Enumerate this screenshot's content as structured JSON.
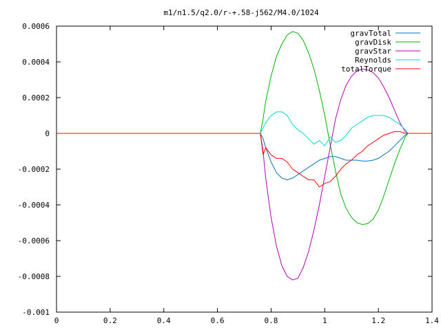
{
  "chart_data": {
    "type": "line",
    "title": "m1/n1.5/q2.0/r-+.58-j562/M4.0/1024",
    "xlabel": "",
    "ylabel": "",
    "xlim": [
      0,
      1.4
    ],
    "ylim": [
      -0.001,
      0.0006
    ],
    "grid": false,
    "legend_position": "top-right",
    "x_ticks": [
      "0",
      "0.2",
      "0.4",
      "0.6",
      "0.8",
      "1",
      "1.2",
      "1.4"
    ],
    "y_ticks": [
      "0.0006",
      "0.0004",
      "0.0002",
      "0",
      "-0.0002",
      "-0.0004",
      "-0.0006",
      "-0.0008",
      "-0.001"
    ],
    "series": [
      {
        "name": "gravTotal",
        "color": "#0072bd",
        "x": [
          0,
          0.76,
          0.77,
          0.78,
          0.8,
          0.82,
          0.84,
          0.86,
          0.88,
          0.9,
          0.92,
          0.94,
          0.96,
          0.98,
          1.0,
          1.02,
          1.04,
          1.06,
          1.08,
          1.1,
          1.12,
          1.14,
          1.16,
          1.18,
          1.2,
          1.22,
          1.24,
          1.26,
          1.28,
          1.3,
          1.31,
          1.4
        ],
        "y": [
          0,
          0,
          -3e-05,
          -8e-05,
          -0.00016,
          -0.00022,
          -0.00025,
          -0.00026,
          -0.00025,
          -0.00023,
          -0.00021,
          -0.00019,
          -0.00017,
          -0.00015,
          -0.00014,
          -0.00013,
          -0.00013,
          -0.00014,
          -0.00015,
          -0.00015,
          -0.00015,
          -0.000155,
          -0.000155,
          -0.00015,
          -0.00014,
          -0.00012,
          -0.0001,
          -7e-05,
          -4e-05,
          -1e-05,
          0,
          0
        ]
      },
      {
        "name": "gravDisk",
        "color": "#00b000",
        "x": [
          0,
          0.76,
          0.77,
          0.78,
          0.8,
          0.82,
          0.84,
          0.86,
          0.88,
          0.9,
          0.92,
          0.94,
          0.96,
          0.98,
          1.0,
          1.02,
          1.04,
          1.06,
          1.08,
          1.1,
          1.12,
          1.14,
          1.16,
          1.18,
          1.2,
          1.22,
          1.24,
          1.26,
          1.28,
          1.3,
          1.31,
          1.4
        ],
        "y": [
          0,
          0,
          8e-05,
          0.00018,
          0.00032,
          0.00043,
          0.0005,
          0.00055,
          0.00057,
          0.00056,
          0.00052,
          0.00045,
          0.00036,
          0.00024,
          0.0001,
          -6e-05,
          -0.00021,
          -0.00034,
          -0.00042,
          -0.00047,
          -0.0005,
          -0.00051,
          -0.000505,
          -0.00048,
          -0.00043,
          -0.00035,
          -0.00026,
          -0.00017,
          -9e-05,
          -2e-05,
          0,
          0
        ]
      },
      {
        "name": "gravStar",
        "color": "#b000b0",
        "x": [
          0,
          0.76,
          0.77,
          0.78,
          0.8,
          0.82,
          0.84,
          0.86,
          0.88,
          0.9,
          0.92,
          0.94,
          0.96,
          0.98,
          1.0,
          1.02,
          1.04,
          1.06,
          1.08,
          1.1,
          1.12,
          1.14,
          1.16,
          1.18,
          1.2,
          1.22,
          1.24,
          1.26,
          1.28,
          1.3,
          1.31,
          1.4
        ],
        "y": [
          0,
          0,
          -0.0001,
          -0.00025,
          -0.00047,
          -0.00063,
          -0.00074,
          -0.0008,
          -0.00082,
          -0.00081,
          -0.00075,
          -0.00066,
          -0.00054,
          -0.0004,
          -0.00024,
          -8e-05,
          8e-05,
          0.00019,
          0.00027,
          0.00032,
          0.00035,
          0.00036,
          0.000355,
          0.00034,
          0.00031,
          0.00026,
          0.0002,
          0.00013,
          6e-05,
          1e-05,
          0,
          0
        ]
      },
      {
        "name": "Reynolds",
        "color": "#00d8d8",
        "x": [
          0,
          0.76,
          0.77,
          0.78,
          0.8,
          0.82,
          0.84,
          0.86,
          0.88,
          0.9,
          0.92,
          0.94,
          0.96,
          0.98,
          1.0,
          1.02,
          1.04,
          1.06,
          1.08,
          1.1,
          1.12,
          1.14,
          1.16,
          1.18,
          1.2,
          1.22,
          1.24,
          1.26,
          1.28,
          1.3,
          1.31,
          1.4
        ],
        "y": [
          0,
          0,
          3e-05,
          6e-05,
          0.0001,
          0.00012,
          0.00012,
          0.0001,
          5e-05,
          2e-05,
          0.0,
          -3e-05,
          -6e-05,
          -4e-05,
          -7e-05,
          -2e-05,
          -5e-05,
          -4e-05,
          -1e-05,
          3e-05,
          5e-05,
          7e-05,
          9e-05,
          0.0001,
          0.0001,
          0.0001,
          9e-05,
          7e-05,
          5e-05,
          2e-05,
          0,
          0
        ]
      },
      {
        "name": "totalTorque",
        "color": "#ff0000",
        "x": [
          0,
          0.76,
          0.77,
          0.78,
          0.8,
          0.82,
          0.84,
          0.86,
          0.88,
          0.9,
          0.92,
          0.94,
          0.96,
          0.98,
          1.0,
          1.02,
          1.04,
          1.06,
          1.08,
          1.1,
          1.12,
          1.14,
          1.16,
          1.18,
          1.2,
          1.22,
          1.24,
          1.26,
          1.28,
          1.3,
          1.31,
          1.4
        ],
        "y": [
          0,
          0,
          -0.00012,
          -8e-05,
          -0.00012,
          -0.00014,
          -0.00014,
          -0.00016,
          -0.0002,
          -0.00022,
          -0.00024,
          -0.00026,
          -0.00026,
          -0.0003,
          -0.00028,
          -0.00027,
          -0.00024,
          -0.0002,
          -0.00017,
          -0.00015,
          -0.00012,
          -0.0001,
          -7e-05,
          -5e-05,
          -3e-05,
          -1e-05,
          0.0,
          1e-05,
          1e-05,
          0.0,
          0,
          0
        ]
      }
    ]
  }
}
